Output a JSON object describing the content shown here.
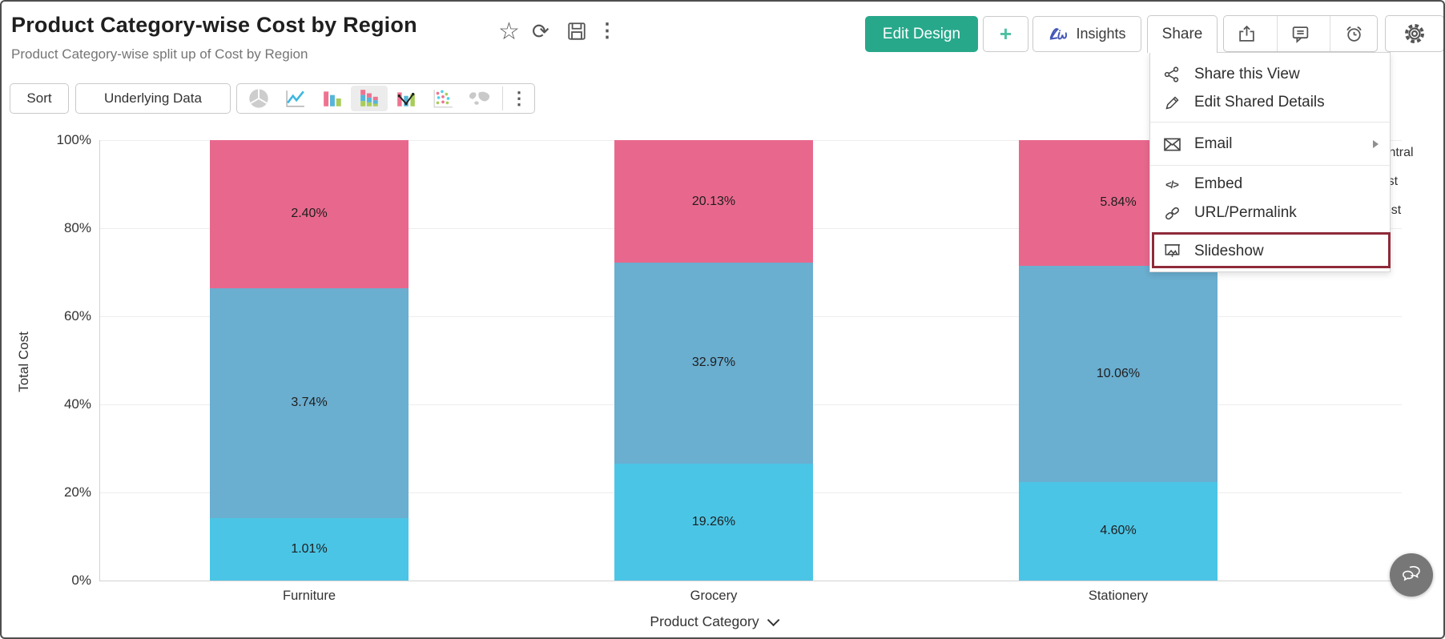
{
  "header": {
    "title": "Product Category-wise Cost by Region",
    "subtitle": "Product Category-wise split up of Cost by Region",
    "title_icons": [
      "star-icon",
      "refresh-icon",
      "save-icon",
      "more-vertical-icon"
    ],
    "actions": {
      "edit_design": "Edit Design",
      "plus": "+",
      "insights": "Insights",
      "share": "Share",
      "icon_buttons": [
        "export-icon",
        "comment-icon",
        "alarm-icon",
        "settings-gear-icon"
      ]
    }
  },
  "toolbar": {
    "sort": "Sort",
    "underlying_data": "Underlying Data",
    "chart_types": [
      "pie-chart-icon",
      "line-chart-icon",
      "bar-chart-icon",
      "stacked-bar-chart-icon",
      "combo-chart-icon",
      "scatter-chart-icon",
      "map-chart-icon",
      "more-chart-types-icon"
    ],
    "selected_chart_type": "stacked-bar-chart-icon"
  },
  "share_menu": {
    "items": [
      {
        "label": "Share this View",
        "icon": "share-nodes-icon"
      },
      {
        "label": "Edit Shared Details",
        "icon": "pencil-icon"
      },
      {
        "label": "Email",
        "icon": "envelope-icon",
        "has_submenu": true
      },
      {
        "label": "Embed",
        "icon": "code-icon"
      },
      {
        "label": "URL/Permalink",
        "icon": "link-icon"
      },
      {
        "label": "Slideshow",
        "icon": "slideshow-screen-icon",
        "highlighted": true
      }
    ],
    "highlight_color": "#8f2a3a"
  },
  "chart_data": {
    "type": "bar",
    "stacked": true,
    "stack_mode": "percent_of_category_total",
    "note": "Data labels are percentages of overall total cost; segment heights are normalized per category",
    "categories": [
      "Furniture",
      "Grocery",
      "Stationery"
    ],
    "series": [
      {
        "name": "Central",
        "color": "#e8688d",
        "values": [
          2.4,
          20.13,
          5.84
        ]
      },
      {
        "name": "East",
        "color": "#6aaed0",
        "values": [
          3.74,
          32.97,
          10.06
        ]
      },
      {
        "name": "West",
        "color": "#4bc5e6",
        "values": [
          1.01,
          19.26,
          4.6
        ]
      }
    ],
    "series_order_visual": "top-to-bottom",
    "xlabel": "Product Category",
    "ylabel": "Total Cost",
    "yticks": [
      "100%",
      "80%",
      "60%",
      "40%",
      "20%",
      "0%"
    ],
    "ylim": [
      "0%",
      "100%"
    ],
    "grid": true,
    "legend_position": "top-right (partially hidden behind share menu)"
  },
  "colors": {
    "accent_green": "#28a88b",
    "highlight_red": "#8f2a3a",
    "icon_gray": "#555555"
  }
}
